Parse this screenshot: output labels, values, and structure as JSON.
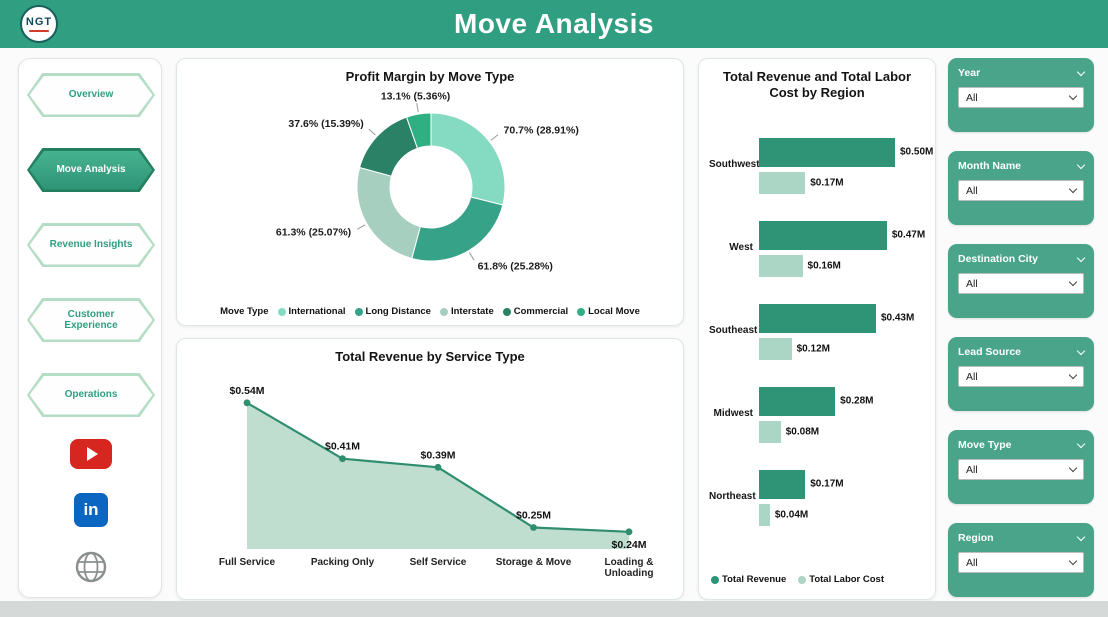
{
  "header": {
    "title": "Move Analysis",
    "logo_text": "NGT"
  },
  "theme": {
    "header_green": "#2f9e81",
    "panel_green": "#4aa48a",
    "hex_border": "#b5ddc6",
    "nav_text": "#2f9e81",
    "active_a": "#46b290",
    "active_b": "#2e9476"
  },
  "sidebar": {
    "items": [
      {
        "label": "Overview",
        "active": false
      },
      {
        "label": "Move Analysis",
        "active": true
      },
      {
        "label": "Revenue Insights",
        "active": false
      },
      {
        "label": "Customer Experience",
        "active": false
      },
      {
        "label": "Operations",
        "active": false
      }
    ],
    "social_icons": [
      "youtube-icon",
      "linkedin-icon",
      "website-icon"
    ]
  },
  "chart_data": [
    {
      "type": "pie",
      "title": "Profit Margin by Move Type",
      "legend_title": "Move Type",
      "legend_position": "bottom",
      "slices": [
        {
          "name": "International",
          "label": "70.7% (28.91%)",
          "profit_margin_pct": 70.7,
          "share_pct": 28.91,
          "color": "#85dbc1"
        },
        {
          "name": "Long Distance",
          "label": "61.8% (25.28%)",
          "profit_margin_pct": 61.8,
          "share_pct": 25.28,
          "color": "#36a288"
        },
        {
          "name": "Interstate",
          "label": "61.3% (25.07%)",
          "profit_margin_pct": 61.3,
          "share_pct": 25.07,
          "color": "#a7cfc0"
        },
        {
          "name": "Commercial",
          "label": "37.6% (15.39%)",
          "profit_margin_pct": 37.6,
          "share_pct": 15.39,
          "color": "#2a8166"
        },
        {
          "name": "Local Move",
          "label": "13.1% (5.36%)",
          "profit_margin_pct": 13.1,
          "share_pct": 5.36,
          "color": "#2fb083"
        }
      ]
    },
    {
      "type": "area",
      "title": "Total Revenue by Service Type",
      "categories": [
        "Full Service",
        "Packing Only",
        "Self Service",
        "Storage & Move",
        "Loading & Unloading"
      ],
      "values": [
        0.54,
        0.41,
        0.39,
        0.25,
        0.24
      ],
      "labels": [
        "$0.54M",
        "$0.41M",
        "$0.39M",
        "$0.25M",
        "$0.24M"
      ],
      "ylim": [
        0.2,
        0.6
      ],
      "line_color": "#2f8e6f",
      "fill_color": "#bcdccd"
    },
    {
      "type": "bar",
      "title": "Total Revenue and Total Labor Cost by Region",
      "orientation": "horizontal",
      "categories": [
        "Southwest",
        "West",
        "Southeast",
        "Midwest",
        "Northeast"
      ],
      "series": [
        {
          "name": "Total Revenue",
          "values": [
            0.5,
            0.47,
            0.43,
            0.28,
            0.17
          ],
          "labels": [
            "$0.50M",
            "$0.47M",
            "$0.43M",
            "$0.28M",
            "$0.17M"
          ],
          "color": "#2f9376"
        },
        {
          "name": "Total Labor Cost",
          "values": [
            0.17,
            0.16,
            0.12,
            0.08,
            0.04
          ],
          "labels": [
            "$0.17M",
            "$0.16M",
            "$0.12M",
            "$0.08M",
            "$0.04M"
          ],
          "color": "#abd5c4"
        }
      ],
      "legend_position": "bottom"
    }
  ],
  "filters": [
    {
      "title": "Year",
      "value": "All"
    },
    {
      "title": "Month Name",
      "value": "All"
    },
    {
      "title": "Destination City",
      "value": "All"
    },
    {
      "title": "Lead Source",
      "value": "All"
    },
    {
      "title": "Move Type",
      "value": "All"
    },
    {
      "title": "Region",
      "value": "All"
    }
  ],
  "icons": {
    "dropdown": "chevron-down",
    "collapse": "chevron-down"
  }
}
